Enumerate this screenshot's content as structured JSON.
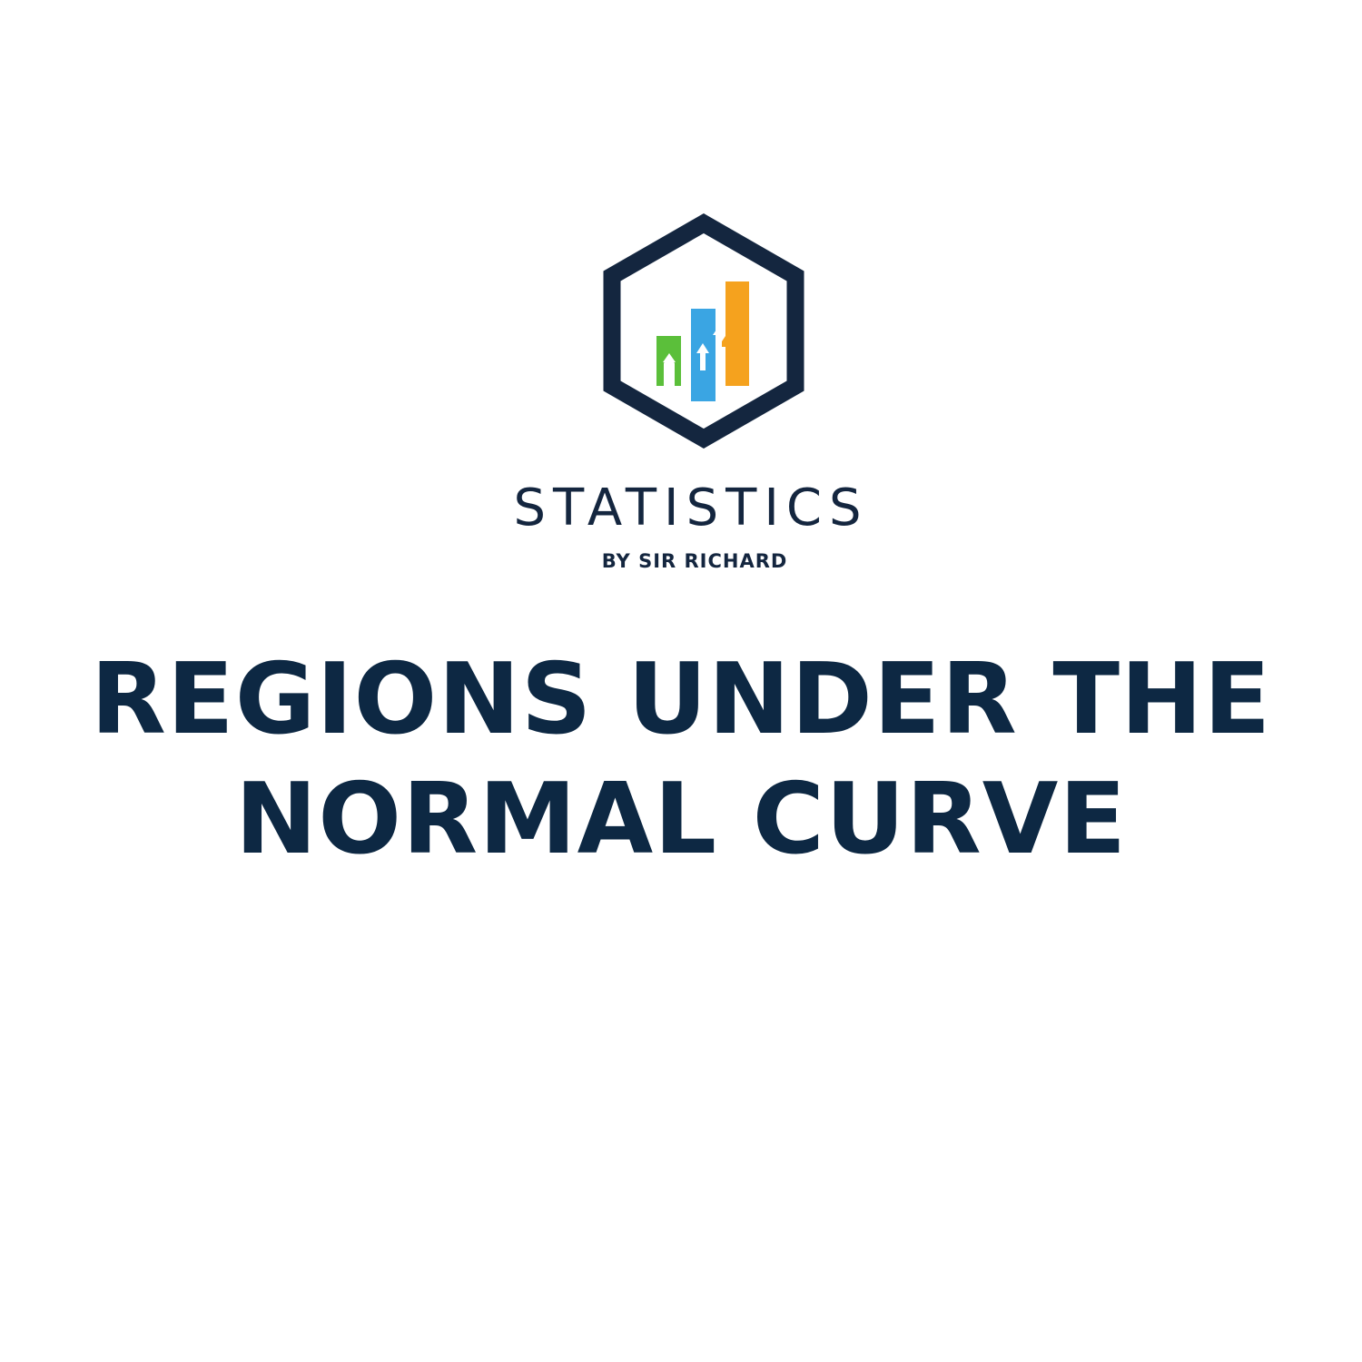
{
  "logo": {
    "name": "STATISTICS",
    "tagline": "BY SIR RICHARD",
    "icon": "hexagon-bar-chart-icon",
    "colors": {
      "frame": "#14263f",
      "bar_green": "#5bbf3a",
      "bar_blue": "#3aa5e3",
      "bar_orange": "#f5a21e"
    }
  },
  "headline": {
    "line1": "REGIONS UNDER THE",
    "line2": "NORMAL CURVE",
    "color": "#0d2843"
  }
}
